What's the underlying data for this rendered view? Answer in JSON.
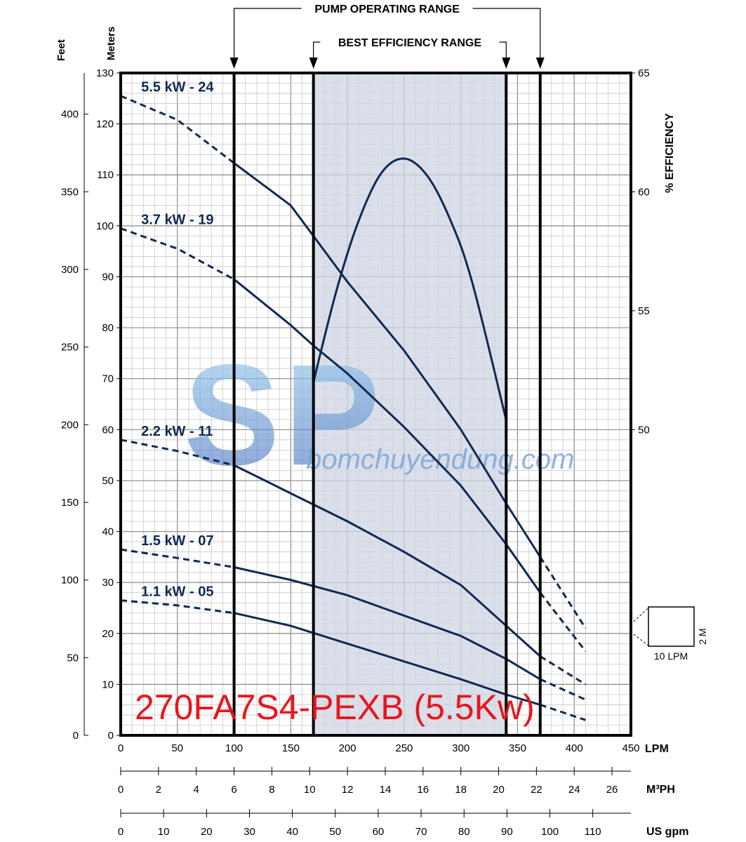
{
  "chart_data": {
    "type": "line",
    "title": "270FA7S4-PEXB (5.5Kw)",
    "title_color": "#e8161b",
    "curve_color": "#0f2a52",
    "band_color": "#cdd4e3",
    "xlabel": "LPM",
    "ylabel_left": "Meters",
    "ylabel_feet": "Feet",
    "ylabel_right": "% EFFICIENCY",
    "xlim": [
      0,
      450
    ],
    "ylim": [
      0,
      130
    ],
    "eff_lim": [
      50,
      65
    ],
    "x_ticks": [
      0,
      50,
      100,
      150,
      200,
      250,
      300,
      350,
      400,
      450
    ],
    "y_ticks": [
      0,
      10,
      20,
      30,
      40,
      50,
      60,
      70,
      80,
      90,
      100,
      110,
      120,
      130
    ],
    "feet_ticks": [
      0,
      50,
      100,
      150,
      200,
      250,
      300,
      350,
      400
    ],
    "eff_ticks": [
      50,
      55,
      60,
      65
    ],
    "grid": true,
    "operating_range": {
      "label": "PUMP OPERATING RANGE",
      "x_min": 100,
      "x_max": 370
    },
    "best_efficiency_range": {
      "label": "BEST EFFICIENCY RANGE",
      "x_min": 170,
      "x_max": 340
    },
    "series": [
      {
        "name": "5.5 kW - 24",
        "points": [
          [
            0,
            125.5
          ],
          [
            50,
            120.8
          ],
          [
            100,
            112.3
          ],
          [
            150,
            104
          ],
          [
            200,
            89
          ],
          [
            250,
            75.5
          ],
          [
            300,
            60
          ],
          [
            340,
            45.5
          ],
          [
            370,
            35
          ],
          [
            410,
            21
          ]
        ],
        "dash_before": 100,
        "dash_after": 370
      },
      {
        "name": "3.7 kW - 19",
        "points": [
          [
            0,
            99.5
          ],
          [
            50,
            95.5
          ],
          [
            100,
            89.5
          ],
          [
            150,
            80.5
          ],
          [
            170,
            76.5
          ],
          [
            200,
            71
          ],
          [
            250,
            60.5
          ],
          [
            300,
            49
          ],
          [
            340,
            37.5
          ],
          [
            370,
            28
          ],
          [
            410,
            16.5
          ]
        ],
        "dash_before": 100,
        "dash_after": 370
      },
      {
        "name": "2.2 kW - 11",
        "points": [
          [
            0,
            58
          ],
          [
            50,
            55.8
          ],
          [
            100,
            53
          ],
          [
            150,
            47.5
          ],
          [
            200,
            42
          ],
          [
            250,
            36
          ],
          [
            300,
            29.5
          ],
          [
            340,
            21.5
          ],
          [
            370,
            15.5
          ],
          [
            410,
            10
          ]
        ],
        "dash_before": 100,
        "dash_after": 370
      },
      {
        "name": "1.5 kW - 07",
        "points": [
          [
            0,
            36.5
          ],
          [
            50,
            34.8
          ],
          [
            100,
            33
          ],
          [
            150,
            30.5
          ],
          [
            200,
            27.5
          ],
          [
            250,
            23.5
          ],
          [
            300,
            19.5
          ],
          [
            340,
            15
          ],
          [
            370,
            11
          ],
          [
            410,
            7
          ]
        ],
        "dash_before": 100,
        "dash_after": 370
      },
      {
        "name": "1.1 kW - 05",
        "points": [
          [
            0,
            26.5
          ],
          [
            50,
            25.5
          ],
          [
            100,
            24
          ],
          [
            150,
            21.5
          ],
          [
            200,
            18
          ],
          [
            250,
            14.5
          ],
          [
            300,
            11
          ],
          [
            340,
            8
          ],
          [
            370,
            6
          ],
          [
            410,
            3
          ]
        ],
        "dash_before": 100,
        "dash_after": 370
      }
    ],
    "efficiency_curve": {
      "points": [
        [
          170,
          52
        ],
        [
          190,
          55.8
        ],
        [
          210,
          58.8
        ],
        [
          230,
          60.8
        ],
        [
          250,
          61.4
        ],
        [
          270,
          60.7
        ],
        [
          290,
          58.9
        ],
        [
          310,
          56.2
        ],
        [
          340,
          50.4
        ]
      ]
    },
    "m3ph_axis": {
      "label": "M³PH",
      "ticks": [
        0,
        2,
        4,
        6,
        8,
        10,
        12,
        14,
        16,
        18,
        20,
        22,
        24,
        26
      ],
      "max": 27
    },
    "usgpm_axis": {
      "label": "US gpm",
      "ticks": [
        0,
        10,
        20,
        30,
        40,
        50,
        60,
        70,
        80,
        90,
        100,
        110
      ],
      "max": 118.88
    },
    "grid_scale": {
      "x_label": "10 LPM",
      "y_label": "2 M"
    },
    "watermark": {
      "logo": "SP",
      "text": "bomchuyendung.com"
    }
  }
}
